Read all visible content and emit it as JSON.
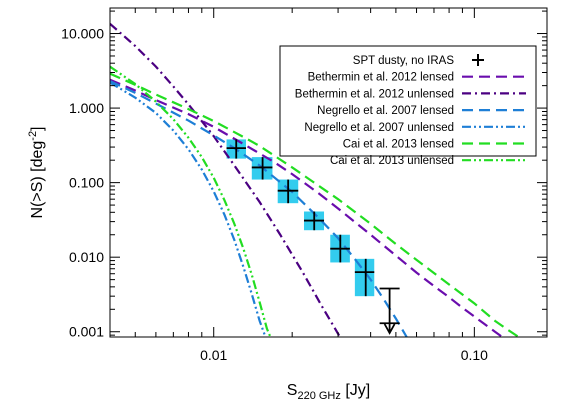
{
  "chart_data": {
    "type": "line",
    "xlabel": "S",
    "xlabel_sub": "220 GHz",
    "xlabel_unit": "[Jy]",
    "ylabel": "N(>S) [deg",
    "ylabel_sup": "-2",
    "ylabel_end": "]",
    "x_scale": "log",
    "y_scale": "log",
    "xlim": [
      0.004,
      0.19
    ],
    "ylim": [
      0.00085,
      22
    ],
    "x_ticks": [
      {
        "value": 0.01,
        "label": "0.01"
      },
      {
        "value": 0.1,
        "label": "0.10"
      }
    ],
    "y_ticks": [
      {
        "value": 10,
        "label": "10.000"
      },
      {
        "value": 1,
        "label": "1.000"
      },
      {
        "value": 0.1,
        "label": "0.100"
      },
      {
        "value": 0.01,
        "label": "0.010"
      },
      {
        "value": 0.001,
        "label": "0.001"
      }
    ],
    "legend_position": "top-right",
    "grid": false,
    "series": [
      {
        "name": "Bethermin et al. 2012 lensed",
        "color": "#6a0dad",
        "style": "dashed",
        "points": [
          [
            0.004,
            2.4
          ],
          [
            0.005,
            1.72
          ],
          [
            0.006,
            1.28
          ],
          [
            0.008,
            0.83
          ],
          [
            0.01,
            0.56
          ],
          [
            0.013,
            0.33
          ],
          [
            0.017,
            0.19
          ],
          [
            0.02,
            0.13
          ],
          [
            0.025,
            0.074
          ],
          [
            0.03,
            0.045
          ],
          [
            0.04,
            0.02
          ],
          [
            0.05,
            0.0105
          ],
          [
            0.06,
            0.0062
          ],
          [
            0.07,
            0.0041
          ],
          [
            0.08,
            0.0029
          ],
          [
            0.09,
            0.0021
          ],
          [
            0.1,
            0.0016
          ],
          [
            0.11,
            0.00125
          ],
          [
            0.12,
            0.001
          ],
          [
            0.128,
            0.00085
          ]
        ]
      },
      {
        "name": "Bethermin et al. 2012 unlensed",
        "color": "#4b0082",
        "style": "dash-dot",
        "points": [
          [
            0.004,
            13.5
          ],
          [
            0.005,
            6.8
          ],
          [
            0.006,
            3.6
          ],
          [
            0.007,
            1.95
          ],
          [
            0.008,
            1.12
          ],
          [
            0.01,
            0.42
          ],
          [
            0.012,
            0.17
          ],
          [
            0.015,
            0.055
          ],
          [
            0.018,
            0.02
          ],
          [
            0.022,
            0.0062
          ],
          [
            0.026,
            0.0022
          ],
          [
            0.029,
            0.00115
          ],
          [
            0.0305,
            0.00085
          ]
        ]
      },
      {
        "name": "Negrello et al. 2007 lensed",
        "color": "#1e7fd6",
        "style": "dashed",
        "points": [
          [
            0.004,
            2.3
          ],
          [
            0.005,
            1.6
          ],
          [
            0.006,
            1.15
          ],
          [
            0.008,
            0.68
          ],
          [
            0.01,
            0.43
          ],
          [
            0.012,
            0.29
          ],
          [
            0.015,
            0.17
          ],
          [
            0.02,
            0.075
          ],
          [
            0.025,
            0.035
          ],
          [
            0.03,
            0.018
          ],
          [
            0.035,
            0.0092
          ],
          [
            0.04,
            0.005
          ],
          [
            0.045,
            0.0027
          ],
          [
            0.05,
            0.0015
          ],
          [
            0.055,
            0.00085
          ]
        ]
      },
      {
        "name": "Negrello et al. 2007 unlensed",
        "color": "#1e7fd6",
        "style": "dash-dot-dot",
        "points": [
          [
            0.004,
            2.2
          ],
          [
            0.005,
            1.38
          ],
          [
            0.006,
            0.86
          ],
          [
            0.007,
            0.5
          ],
          [
            0.008,
            0.28
          ],
          [
            0.009,
            0.15
          ],
          [
            0.01,
            0.076
          ],
          [
            0.011,
            0.037
          ],
          [
            0.012,
            0.017
          ],
          [
            0.013,
            0.0074
          ],
          [
            0.014,
            0.0032
          ],
          [
            0.015,
            0.0014
          ],
          [
            0.0158,
            0.00085
          ]
        ]
      },
      {
        "name": "Cai et al. 2013 lensed",
        "color": "#22dd22",
        "style": "dashed",
        "points": [
          [
            0.004,
            2.9
          ],
          [
            0.005,
            2.05
          ],
          [
            0.006,
            1.52
          ],
          [
            0.008,
            0.97
          ],
          [
            0.01,
            0.67
          ],
          [
            0.013,
            0.41
          ],
          [
            0.015,
            0.31
          ],
          [
            0.02,
            0.16
          ],
          [
            0.03,
            0.06
          ],
          [
            0.04,
            0.028
          ],
          [
            0.05,
            0.015
          ],
          [
            0.06,
            0.0092
          ],
          [
            0.08,
            0.0043
          ],
          [
            0.1,
            0.0024
          ],
          [
            0.12,
            0.0014
          ],
          [
            0.135,
            0.00105
          ],
          [
            0.148,
            0.00085
          ]
        ]
      },
      {
        "name": "Cai et al. 2013 unlensed",
        "color": "#22dd22",
        "style": "dash-dot-dot",
        "points": [
          [
            0.004,
            3.6
          ],
          [
            0.005,
            2.1
          ],
          [
            0.006,
            1.22
          ],
          [
            0.007,
            0.71
          ],
          [
            0.008,
            0.4
          ],
          [
            0.009,
            0.22
          ],
          [
            0.01,
            0.116
          ],
          [
            0.011,
            0.058
          ],
          [
            0.012,
            0.028
          ],
          [
            0.013,
            0.013
          ],
          [
            0.014,
            0.0058
          ],
          [
            0.015,
            0.0025
          ],
          [
            0.016,
            0.0011
          ],
          [
            0.0165,
            0.00085
          ]
        ]
      }
    ],
    "data_series": {
      "name": "SPT dusty, no IRAS",
      "color": "#000000",
      "box_color": "#33ccee",
      "points": [
        {
          "x": 0.0122,
          "y": 0.29,
          "x_err": [
            0.0112,
            0.0133
          ],
          "y_err": [
            0.21,
            0.38
          ]
        },
        {
          "x": 0.0154,
          "y": 0.16,
          "x_err": [
            0.014,
            0.0168
          ],
          "y_err": [
            0.11,
            0.22
          ]
        },
        {
          "x": 0.0193,
          "y": 0.078,
          "x_err": [
            0.0176,
            0.0211
          ],
          "y_err": [
            0.053,
            0.11
          ]
        },
        {
          "x": 0.0243,
          "y": 0.031,
          "x_err": [
            0.0222,
            0.0265
          ],
          "y_err": [
            0.023,
            0.041
          ]
        },
        {
          "x": 0.0306,
          "y": 0.013,
          "x_err": [
            0.028,
            0.0333
          ],
          "y_err": [
            0.0085,
            0.02
          ]
        },
        {
          "x": 0.0383,
          "y": 0.0063,
          "x_err": [
            0.0348,
            0.0413
          ],
          "y_err": [
            0.003,
            0.0095
          ]
        },
        {
          "x": 0.0473,
          "y": 0.0013,
          "x_err": [
            0.042,
            0.051
          ],
          "y_err": [
            0.00085,
            0.0038
          ],
          "upper_limit": true
        }
      ]
    }
  }
}
